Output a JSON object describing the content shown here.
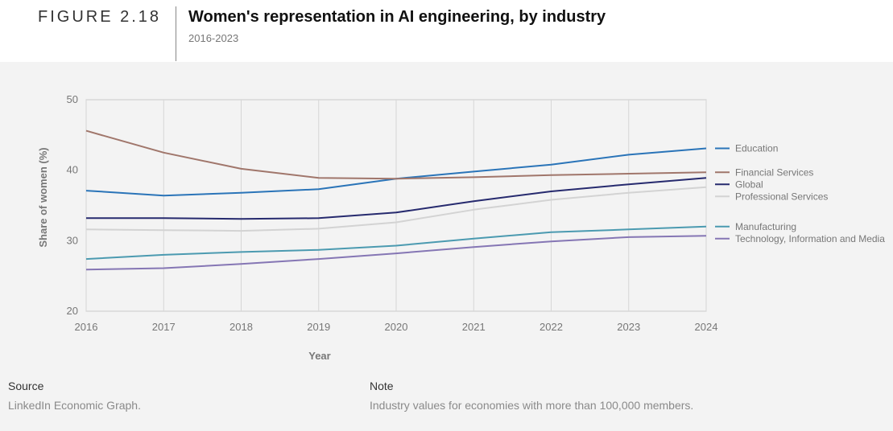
{
  "header": {
    "figure_number": "FIGURE 2.18",
    "title": "Women's representation in AI engineering, by industry",
    "subtitle": "2016-2023"
  },
  "footer": {
    "source_label": "Source",
    "source_text": "LinkedIn Economic Graph.",
    "note_label": "Note",
    "note_text": "Industry values for economies with more than 100,000 members."
  },
  "chart_data": {
    "type": "line",
    "xlabel": "Year",
    "ylabel": "Share of women (%)",
    "xlim": [
      2016,
      2024
    ],
    "ylim": [
      20,
      50
    ],
    "x_ticks": [
      2016,
      2017,
      2018,
      2019,
      2020,
      2021,
      2022,
      2023,
      2024
    ],
    "y_ticks": [
      20,
      30,
      40,
      50
    ],
    "grid": true,
    "legend_position": "right",
    "series": [
      {
        "name": "Education",
        "color": "#2a74b8",
        "x": [
          2016,
          2017,
          2018,
          2019,
          2020,
          2021,
          2022,
          2023,
          2024
        ],
        "y": [
          37.1,
          36.4,
          36.8,
          37.3,
          38.8,
          39.8,
          40.8,
          42.2,
          43.1
        ]
      },
      {
        "name": "Financial Services",
        "color": "#a0766b",
        "x": [
          2016,
          2017,
          2018,
          2019,
          2020,
          2021,
          2022,
          2023,
          2024
        ],
        "y": [
          45.6,
          42.5,
          40.2,
          38.9,
          38.8,
          39.0,
          39.3,
          39.5,
          39.7
        ]
      },
      {
        "name": "Global",
        "color": "#262a6e",
        "x": [
          2016,
          2017,
          2018,
          2019,
          2020,
          2021,
          2022,
          2023,
          2024
        ],
        "y": [
          33.2,
          33.2,
          33.1,
          33.2,
          34.0,
          35.6,
          37.0,
          38.0,
          38.9
        ]
      },
      {
        "name": "Professional Services",
        "color": "#d3d3d3",
        "x": [
          2016,
          2017,
          2018,
          2019,
          2020,
          2021,
          2022,
          2023,
          2024
        ],
        "y": [
          31.6,
          31.5,
          31.4,
          31.7,
          32.6,
          34.4,
          35.8,
          36.8,
          37.6
        ]
      },
      {
        "name": "Manufacturing",
        "color": "#4b9ab0",
        "x": [
          2016,
          2017,
          2018,
          2019,
          2020,
          2021,
          2022,
          2023,
          2024
        ],
        "y": [
          27.4,
          28.0,
          28.4,
          28.7,
          29.3,
          30.3,
          31.2,
          31.6,
          32.0
        ]
      },
      {
        "name": "Technology, Information and Media",
        "color": "#8576b4",
        "x": [
          2016,
          2017,
          2018,
          2019,
          2020,
          2021,
          2022,
          2023,
          2024
        ],
        "y": [
          25.9,
          26.1,
          26.7,
          27.4,
          28.2,
          29.1,
          29.9,
          30.5,
          30.7
        ]
      }
    ]
  }
}
